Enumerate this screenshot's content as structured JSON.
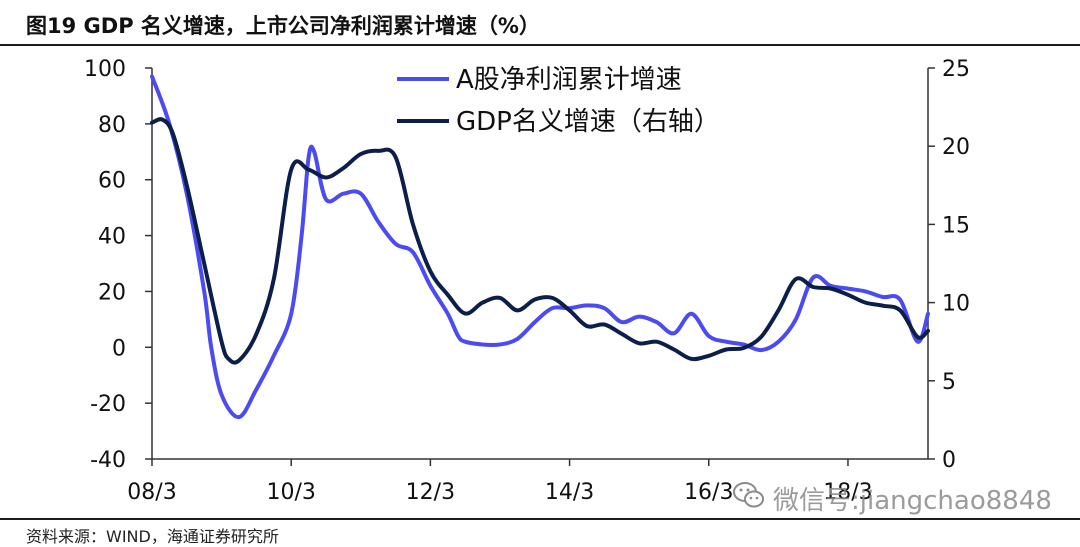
{
  "header": {
    "title": "图19 GDP 名义增速，上市公司净利润累计增速（%）"
  },
  "footer": {
    "source": "资料来源：WIND，海通证券研究所"
  },
  "watermark": {
    "text": "微信号:jiangchao8848",
    "icon": "wechat-icon"
  },
  "colors": {
    "profit": "#4b4bf0",
    "gdp": "#0c1f4a",
    "axis": "#333333",
    "text": "#111111"
  },
  "chart_data": {
    "type": "line",
    "x_ticks": [
      "08/3",
      "10/3",
      "12/3",
      "14/3",
      "16/3",
      "18/3"
    ],
    "xlim": [
      2008.0,
      2019.15
    ],
    "y_left": {
      "ticks": [
        100,
        80,
        60,
        40,
        20,
        0,
        -20,
        -40
      ],
      "ylim": [
        -40,
        100
      ]
    },
    "y_right": {
      "ticks": [
        25,
        20,
        15,
        10,
        5,
        0
      ],
      "ylim": [
        0,
        25
      ]
    },
    "legend": {
      "position": "top-center"
    },
    "series": [
      {
        "name": "A股净利润累计增速",
        "axis": "left",
        "color": "#4b4bf0",
        "points": [
          [
            2008.0,
            97
          ],
          [
            2008.25,
            80
          ],
          [
            2008.5,
            55
          ],
          [
            2008.75,
            20
          ],
          [
            2008.85,
            0
          ],
          [
            2009.0,
            -17
          ],
          [
            2009.25,
            -25
          ],
          [
            2009.5,
            -15
          ],
          [
            2009.75,
            -3
          ],
          [
            2010.0,
            12
          ],
          [
            2010.15,
            40
          ],
          [
            2010.25,
            68
          ],
          [
            2010.33,
            70
          ],
          [
            2010.5,
            53
          ],
          [
            2010.75,
            55
          ],
          [
            2011.0,
            55
          ],
          [
            2011.25,
            45
          ],
          [
            2011.5,
            37
          ],
          [
            2011.75,
            34
          ],
          [
            2012.0,
            22
          ],
          [
            2012.25,
            12
          ],
          [
            2012.4,
            4
          ],
          [
            2012.5,
            2
          ],
          [
            2012.75,
            1
          ],
          [
            2013.0,
            1
          ],
          [
            2013.25,
            3
          ],
          [
            2013.5,
            9
          ],
          [
            2013.75,
            14
          ],
          [
            2014.0,
            14
          ],
          [
            2014.25,
            15
          ],
          [
            2014.5,
            14
          ],
          [
            2014.75,
            9
          ],
          [
            2015.0,
            11
          ],
          [
            2015.25,
            9
          ],
          [
            2015.5,
            5
          ],
          [
            2015.75,
            12
          ],
          [
            2016.0,
            4
          ],
          [
            2016.25,
            2
          ],
          [
            2016.5,
            1
          ],
          [
            2016.75,
            -1
          ],
          [
            2017.0,
            2
          ],
          [
            2017.25,
            10
          ],
          [
            2017.5,
            25
          ],
          [
            2017.75,
            22
          ],
          [
            2018.0,
            21
          ],
          [
            2018.25,
            20
          ],
          [
            2018.5,
            18
          ],
          [
            2018.75,
            17
          ],
          [
            2019.0,
            2
          ],
          [
            2019.15,
            12
          ]
        ]
      },
      {
        "name": "GDP名义增速（右轴）",
        "axis": "right",
        "color": "#0c1f4a",
        "points": [
          [
            2008.0,
            21.5
          ],
          [
            2008.15,
            21.7
          ],
          [
            2008.3,
            20.8
          ],
          [
            2008.5,
            17.5
          ],
          [
            2008.75,
            12.5
          ],
          [
            2009.0,
            7.5
          ],
          [
            2009.1,
            6.4
          ],
          [
            2009.25,
            6.3
          ],
          [
            2009.5,
            8
          ],
          [
            2009.75,
            11.5
          ],
          [
            2010.0,
            18.5
          ],
          [
            2010.25,
            18.5
          ],
          [
            2010.5,
            18.0
          ],
          [
            2010.75,
            18.6
          ],
          [
            2011.0,
            19.5
          ],
          [
            2011.25,
            19.7
          ],
          [
            2011.5,
            19.3
          ],
          [
            2011.75,
            15
          ],
          [
            2012.0,
            12
          ],
          [
            2012.25,
            10.5
          ],
          [
            2012.5,
            9.3
          ],
          [
            2012.75,
            10.0
          ],
          [
            2013.0,
            10.3
          ],
          [
            2013.25,
            9.5
          ],
          [
            2013.5,
            10.2
          ],
          [
            2013.75,
            10.3
          ],
          [
            2014.0,
            9.5
          ],
          [
            2014.25,
            8.5
          ],
          [
            2014.5,
            8.6
          ],
          [
            2014.75,
            8.0
          ],
          [
            2015.0,
            7.4
          ],
          [
            2015.25,
            7.5
          ],
          [
            2015.5,
            7.0
          ],
          [
            2015.75,
            6.4
          ],
          [
            2016.0,
            6.6
          ],
          [
            2016.25,
            7.0
          ],
          [
            2016.5,
            7.1
          ],
          [
            2016.75,
            7.8
          ],
          [
            2017.0,
            9.5
          ],
          [
            2017.25,
            11.5
          ],
          [
            2017.5,
            11.0
          ],
          [
            2017.75,
            10.9
          ],
          [
            2018.0,
            10.5
          ],
          [
            2018.25,
            10.0
          ],
          [
            2018.5,
            9.8
          ],
          [
            2018.75,
            9.5
          ],
          [
            2019.0,
            7.8
          ],
          [
            2019.15,
            8.2
          ]
        ]
      }
    ]
  }
}
